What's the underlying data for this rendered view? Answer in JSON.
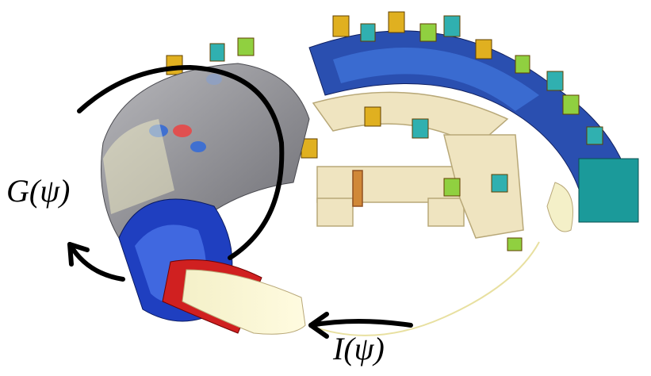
{
  "labels": {
    "g": "G(ψ)",
    "i": "I(ψ)"
  }
}
